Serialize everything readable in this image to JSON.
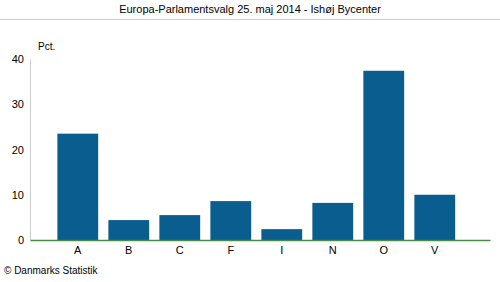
{
  "chart_data": {
    "type": "bar",
    "title": "Europa-Parlamentsvalg 25. maj 2014 - Ishøj Bycenter",
    "ylabel": "Pct.",
    "categories": [
      "A",
      "B",
      "C",
      "F",
      "I",
      "N",
      "O",
      "V"
    ],
    "values": [
      23.5,
      4.4,
      5.5,
      8.6,
      2.4,
      8.2,
      37.4,
      10.0
    ],
    "color": "#0a5d8f",
    "ylim": [
      0,
      40
    ],
    "yticks": [
      0,
      10,
      20,
      30,
      40
    ],
    "grid": false,
    "source": "© Danmarks Statistik"
  }
}
